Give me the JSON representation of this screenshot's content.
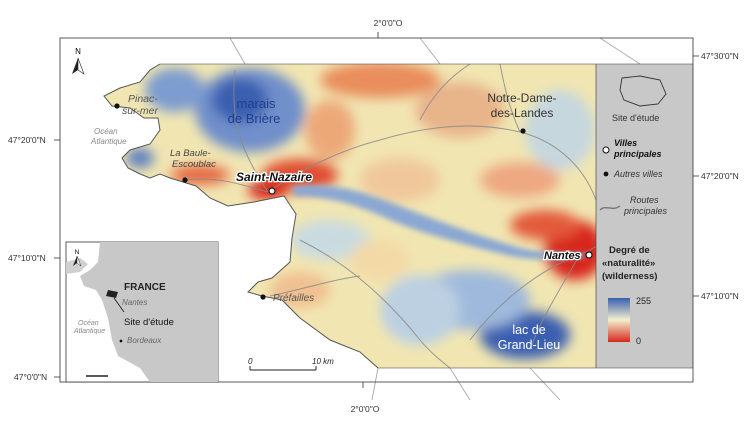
{
  "map": {
    "coordinates": {
      "top_lon": "2°0'0\"O",
      "bottom_lon": "2°0'0\"O",
      "left_lats": [
        "47°20'0\"N",
        "47°10'0\"N",
        "47°0'0\"N"
      ],
      "right_lats": [
        "47°30'0\"N",
        "47°20'0\"N",
        "47°10'0\"N"
      ]
    },
    "places": {
      "ocean": "Océan Atlantique",
      "pinac": "Pinac-sur-mer",
      "briere": "marais de Brière",
      "la_baule": "La Baule-Escoublac",
      "saint_nazaire": "Saint-Nazaire",
      "notre_dame": "Notre-Dame-des-Landes",
      "nantes": "Nantes",
      "prefailles": "Préfailles",
      "grand_lieu": "lac de Grand-Lieu"
    },
    "scale": {
      "start": "0",
      "end": "10 km"
    },
    "north_label": "N"
  },
  "legend": {
    "site": "Site d'étude",
    "villes_principales": "Villes principales",
    "autres_villes": "Autres villes",
    "routes": "Routes principales",
    "degree_title": "Degré de «naturalité» (wilderness)",
    "scale_max": "255",
    "scale_min": "0"
  },
  "inset": {
    "france": "FRANCE",
    "ocean": "Océan Atlantique",
    "nantes": "Nantes",
    "site": "Site d'étude",
    "bordeaux": "Bordeaux",
    "north_label": "N"
  },
  "colors": {
    "wild_high": "#3a5fb0",
    "wild_low": "#d8281c",
    "neutral": "#f2e9b8",
    "sea": "#ffffff",
    "panel": "#c8c8c8"
  }
}
